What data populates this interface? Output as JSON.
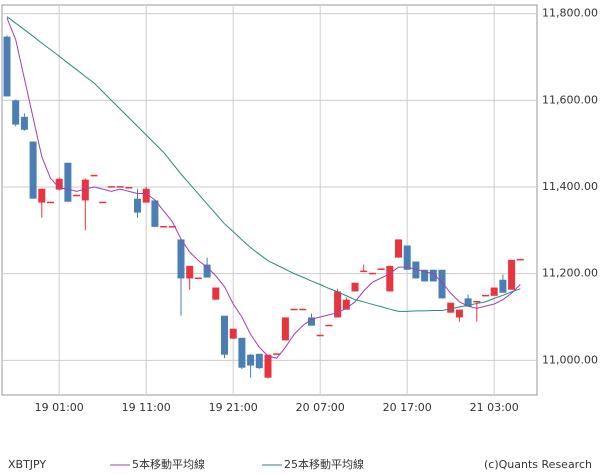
{
  "chart_data": {
    "type": "candlestick",
    "symbol": "XBTJPY",
    "credit": "(c)Quants Research",
    "categories": [
      null,
      null,
      null,
      null,
      null,
      null,
      "19 01:00",
      null,
      null,
      null,
      null,
      null,
      null,
      null,
      null,
      null,
      "19 11:00",
      null,
      null,
      null,
      null,
      null,
      null,
      null,
      null,
      null,
      "19 21:00",
      null,
      null,
      null,
      null,
      null,
      null,
      null,
      null,
      null,
      "20 07:00",
      null,
      null,
      null,
      null,
      null,
      null,
      null,
      null,
      null,
      "20 17:00",
      null,
      null,
      null,
      null,
      null,
      null,
      null,
      null,
      null,
      "21 03:00",
      null,
      null,
      null
    ],
    "open": [
      11747,
      11600,
      11562,
      11505,
      11364,
      11364,
      11394,
      11456,
      11380,
      11369,
      11425,
      11364,
      11400,
      11400,
      11398,
      11373,
      11364,
      11369,
      11308,
      11308,
      11279,
      11189,
      11189,
      11221,
      11140,
      11103,
      11050,
      11052,
      11013,
      11015,
      10960,
      11014,
      11046,
      11117,
      11117,
      11099,
      11057,
      11080,
      11099,
      11117,
      11159,
      11205,
      11200,
      11210,
      11159,
      11237,
      11265,
      11228,
      11209,
      11209,
      11209,
      11110,
      11099,
      11143,
      11135,
      11149,
      11149,
      11186,
      11163,
      11232
    ],
    "high": [
      11750,
      11602,
      11570,
      11505,
      11396,
      11366,
      11422,
      11456,
      11382,
      11420,
      11428,
      11366,
      11402,
      11402,
      11400,
      11396,
      11400,
      11369,
      11310,
      11310,
      11279,
      11218,
      11191,
      11237,
      11168,
      11103,
      11073,
      11052,
      11015,
      11015,
      11013,
      11016,
      11099,
      11119,
      11119,
      11108,
      11059,
      11082,
      11165,
      11145,
      11179,
      11221,
      11202,
      11212,
      11218,
      11279,
      11265,
      11228,
      11209,
      11209,
      11209,
      11133,
      11117,
      11152,
      11137,
      11151,
      11168,
      11198,
      11232,
      11234
    ],
    "low": [
      11609,
      11540,
      11530,
      11373,
      11329,
      11364,
      11392,
      11366,
      11380,
      11300,
      11425,
      11364,
      11400,
      11400,
      11398,
      11329,
      11364,
      11308,
      11308,
      11308,
      11103,
      11163,
      11189,
      11191,
      11140,
      11005,
      11050,
      10980,
      10960,
      10980,
      10958,
      11014,
      11046,
      11117,
      11117,
      11080,
      11057,
      11080,
      11099,
      11117,
      11159,
      11205,
      11200,
      11210,
      11159,
      11237,
      11209,
      11189,
      11182,
      11182,
      11143,
      11110,
      11089,
      11124,
      11089,
      11149,
      11149,
      11156,
      11163,
      11232
    ],
    "close": [
      11609,
      11544,
      11532,
      11373,
      11396,
      11366,
      11419,
      11366,
      11382,
      11417,
      11428,
      11366,
      11402,
      11402,
      11400,
      11341,
      11396,
      11308,
      11310,
      11310,
      11189,
      11218,
      11191,
      11191,
      11168,
      11013,
      11073,
      10983,
      10988,
      10982,
      11013,
      11016,
      11099,
      11119,
      11119,
      11080,
      11059,
      11082,
      11159,
      11140,
      11179,
      11207,
      11202,
      11212,
      11218,
      11279,
      11209,
      11189,
      11182,
      11182,
      11143,
      11133,
      11117,
      11124,
      11137,
      11151,
      11168,
      11156,
      11232,
      11234
    ],
    "up_color": "#e8343c",
    "down_color": "#4a7fb5",
    "series": [
      {
        "name": "5本移動平均線",
        "color": "#a040b0",
        "values": [
          11790,
          11740,
          11650,
          11560,
          11470,
          11420,
          11398,
          11395,
          11390,
          11395,
          11400,
          11395,
          11390,
          11395,
          11390,
          11385,
          11385,
          11370,
          11345,
          11320,
          11280,
          11250,
          11230,
          11215,
          11195,
          11170,
          11130,
          11100,
          11060,
          11030,
          11010,
          11005,
          11030,
          11060,
          11080,
          11095,
          11100,
          11105,
          11110,
          11120,
          11135,
          11160,
          11180,
          11190,
          11200,
          11215,
          11215,
          11210,
          11205,
          11200,
          11180,
          11155,
          11135,
          11125,
          11120,
          11125,
          11130,
          11140,
          11155,
          11175
        ]
      },
      {
        "name": "25本移動平均線",
        "color": "#2a8a80",
        "values": [
          11793,
          11778,
          11763,
          11748,
          11732,
          11717,
          11702,
          11686,
          11671,
          11655,
          11640,
          11620,
          11600,
          11580,
          11560,
          11540,
          11520,
          11500,
          11480,
          11455,
          11430,
          11407,
          11384,
          11361,
          11338,
          11315,
          11297,
          11278,
          11260,
          11245,
          11230,
          11220,
          11210,
          11200,
          11192,
          11183,
          11175,
          11166,
          11158,
          11149,
          11140,
          11135,
          11129,
          11124,
          11118,
          11113,
          11113,
          11114,
          11114,
          11115,
          11115,
          11119,
          11123,
          11127,
          11131,
          11135,
          11143,
          11150,
          11158,
          11165
        ]
      }
    ],
    "ylim": [
      10920,
      11820
    ],
    "yticks": [
      {
        "value": 11000,
        "label": "11,000.00"
      },
      {
        "value": 11200,
        "label": "11,200.00"
      },
      {
        "value": 11400,
        "label": "11,400.00"
      },
      {
        "value": 11600,
        "label": "11,600.00"
      },
      {
        "value": 11800,
        "label": "11,800.00"
      }
    ],
    "grid": true
  }
}
